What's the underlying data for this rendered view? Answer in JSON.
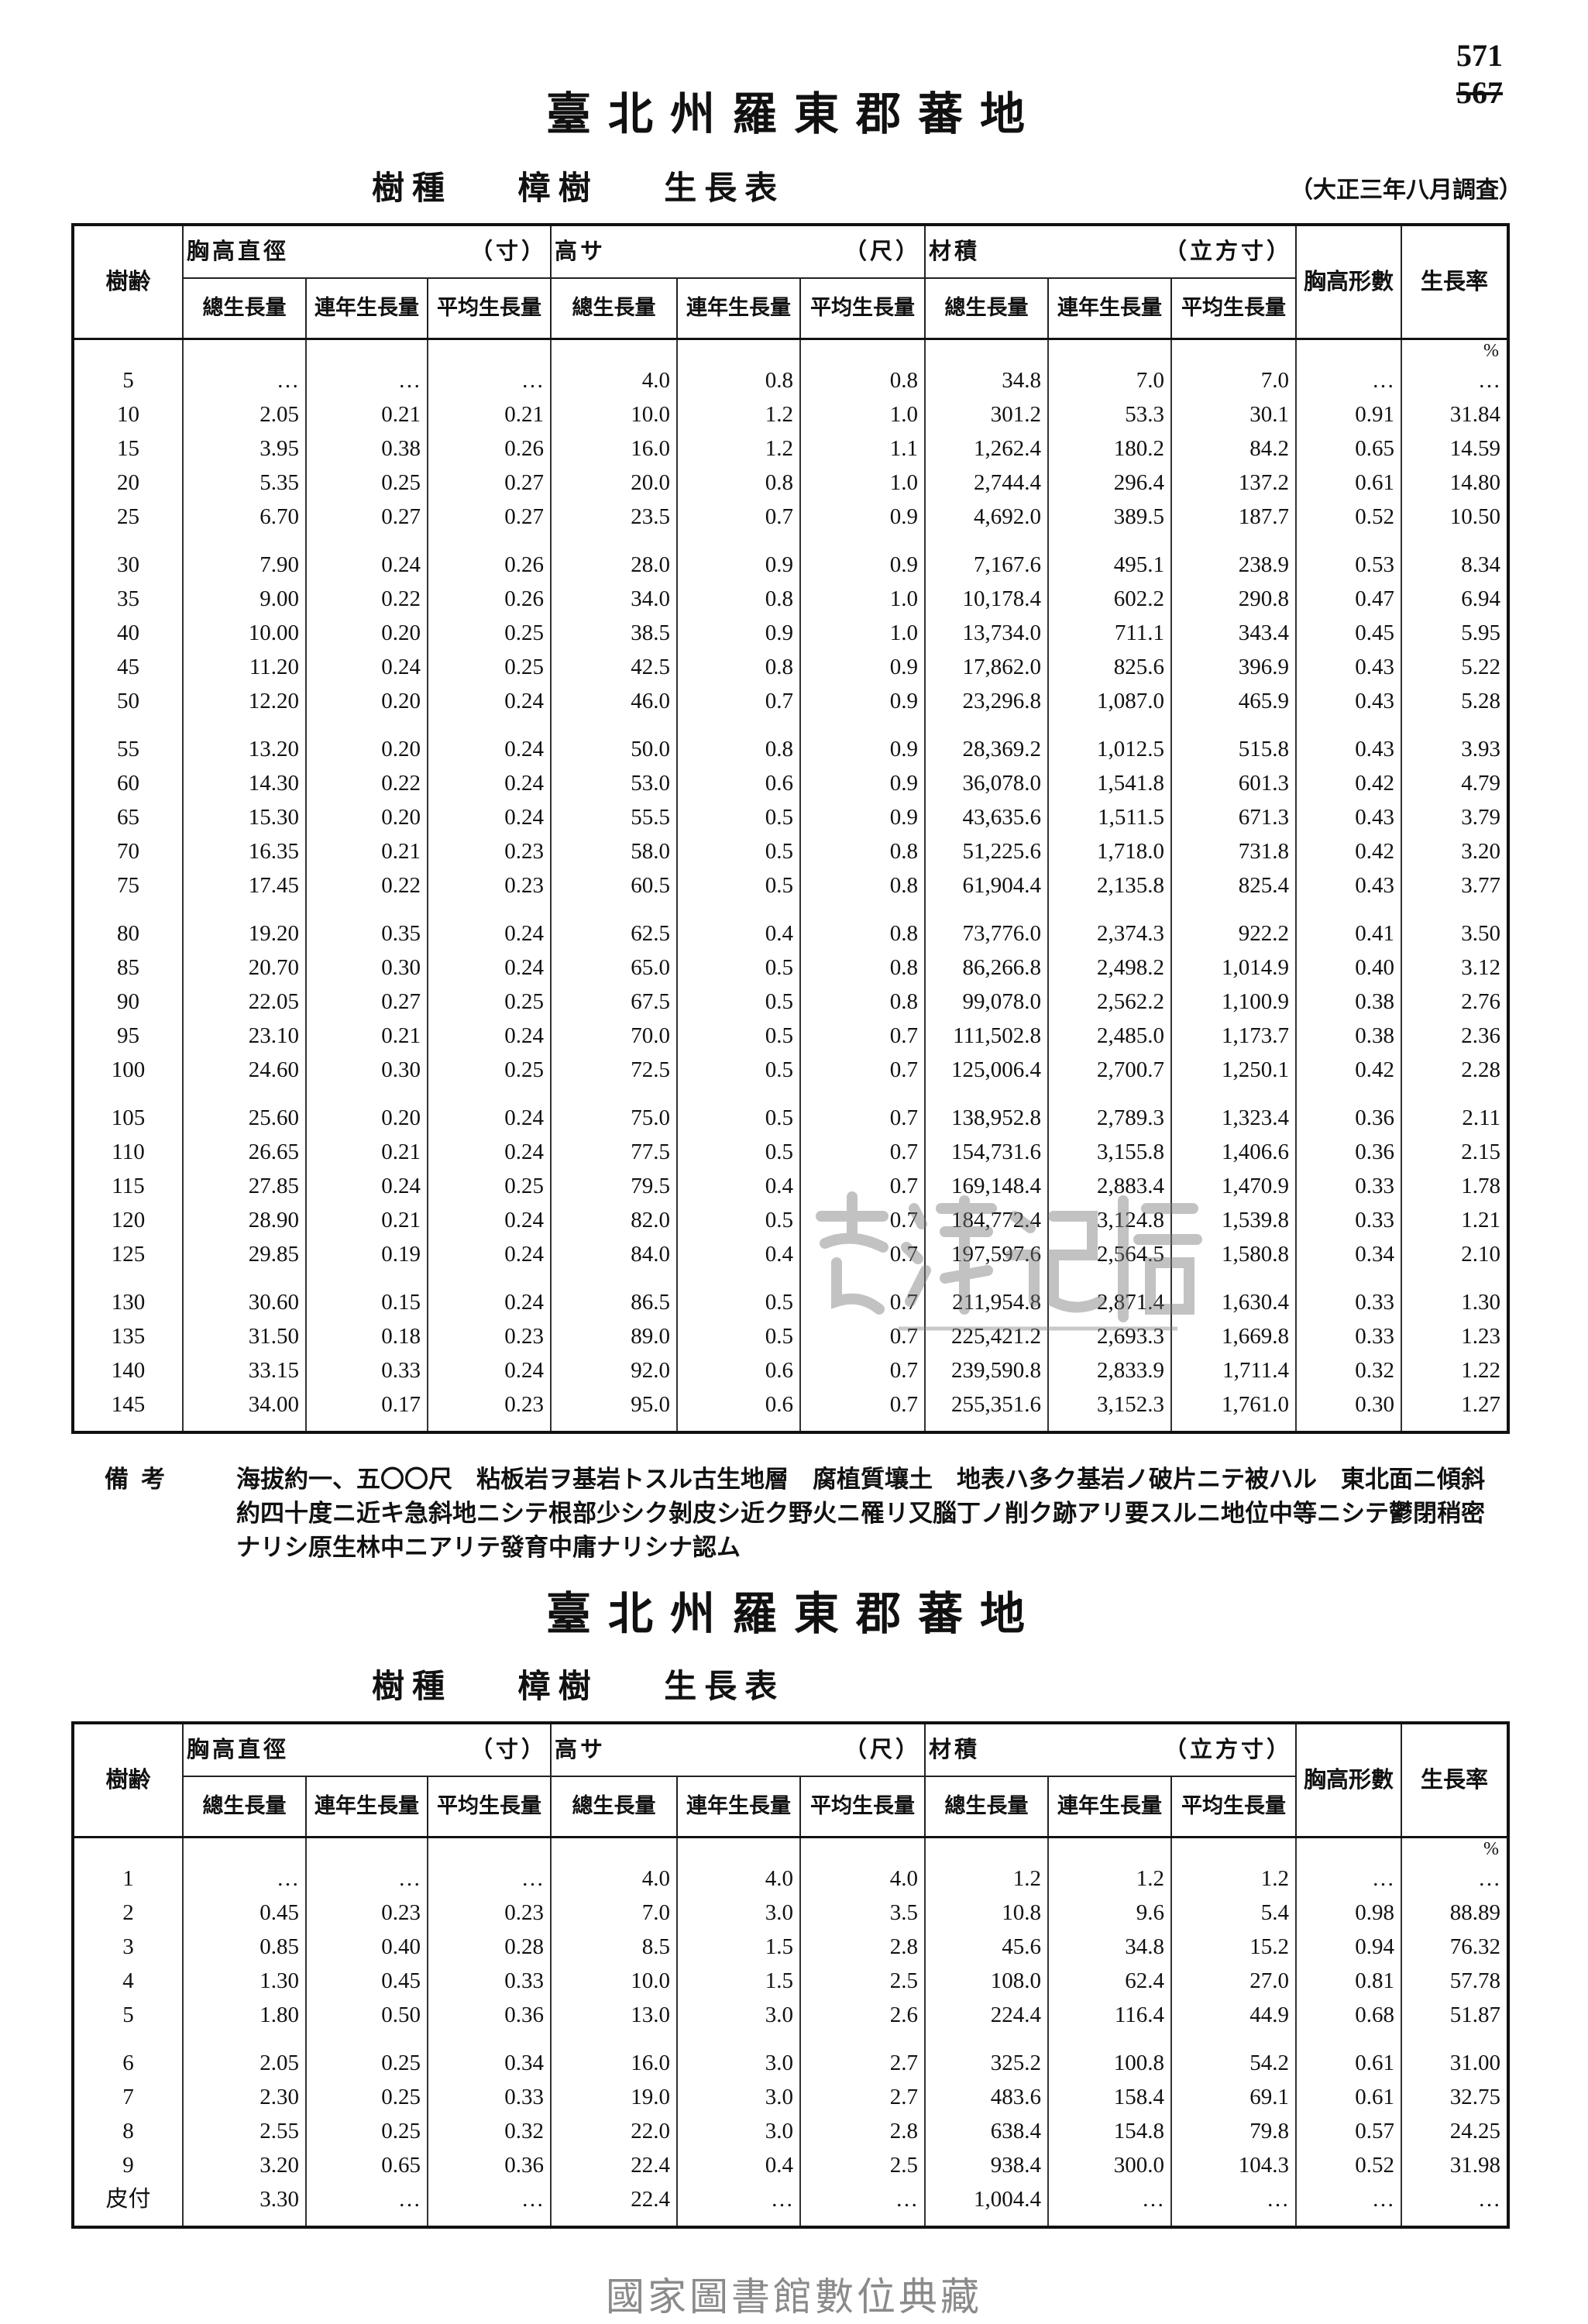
{
  "page_numbers": [
    "571",
    "567"
  ],
  "tables": [
    {
      "title": "臺北州羅東郡蕃地",
      "subtitle_species_label": "樹種",
      "subtitle_species": "樟樹",
      "subtitle_table": "生長表",
      "survey_note": "（大正三年八月調査）",
      "headers": {
        "age": "樹齢",
        "diameter": "胸高直徑",
        "diameter_unit": "（寸）",
        "height": "高サ",
        "height_unit": "（尺）",
        "volume": "材積",
        "volume_unit": "（立方寸）",
        "form_factor": "胸高形數",
        "growth_rate": "生長率",
        "total": "總生長量",
        "current_annual": "連年生長量",
        "mean_annual": "平均生長量"
      },
      "percent_mark": "%",
      "rows": [
        [
          "5",
          "…",
          "…",
          "…",
          "4.0",
          "0.8",
          "0.8",
          "34.8",
          "7.0",
          "7.0",
          "…",
          "…"
        ],
        [
          "10",
          "2.05",
          "0.21",
          "0.21",
          "10.0",
          "1.2",
          "1.0",
          "301.2",
          "53.3",
          "30.1",
          "0.91",
          "31.84"
        ],
        [
          "15",
          "3.95",
          "0.38",
          "0.26",
          "16.0",
          "1.2",
          "1.1",
          "1,262.4",
          "180.2",
          "84.2",
          "0.65",
          "14.59"
        ],
        [
          "20",
          "5.35",
          "0.25",
          "0.27",
          "20.0",
          "0.8",
          "1.0",
          "2,744.4",
          "296.4",
          "137.2",
          "0.61",
          "14.80"
        ],
        [
          "25",
          "6.70",
          "0.27",
          "0.27",
          "23.5",
          "0.7",
          "0.9",
          "4,692.0",
          "389.5",
          "187.7",
          "0.52",
          "10.50"
        ],
        [
          "30",
          "7.90",
          "0.24",
          "0.26",
          "28.0",
          "0.9",
          "0.9",
          "7,167.6",
          "495.1",
          "238.9",
          "0.53",
          "8.34"
        ],
        [
          "35",
          "9.00",
          "0.22",
          "0.26",
          "34.0",
          "0.8",
          "1.0",
          "10,178.4",
          "602.2",
          "290.8",
          "0.47",
          "6.94"
        ],
        [
          "40",
          "10.00",
          "0.20",
          "0.25",
          "38.5",
          "0.9",
          "1.0",
          "13,734.0",
          "711.1",
          "343.4",
          "0.45",
          "5.95"
        ],
        [
          "45",
          "11.20",
          "0.24",
          "0.25",
          "42.5",
          "0.8",
          "0.9",
          "17,862.0",
          "825.6",
          "396.9",
          "0.43",
          "5.22"
        ],
        [
          "50",
          "12.20",
          "0.20",
          "0.24",
          "46.0",
          "0.7",
          "0.9",
          "23,296.8",
          "1,087.0",
          "465.9",
          "0.43",
          "5.28"
        ],
        [
          "55",
          "13.20",
          "0.20",
          "0.24",
          "50.0",
          "0.8",
          "0.9",
          "28,369.2",
          "1,012.5",
          "515.8",
          "0.43",
          "3.93"
        ],
        [
          "60",
          "14.30",
          "0.22",
          "0.24",
          "53.0",
          "0.6",
          "0.9",
          "36,078.0",
          "1,541.8",
          "601.3",
          "0.42",
          "4.79"
        ],
        [
          "65",
          "15.30",
          "0.20",
          "0.24",
          "55.5",
          "0.5",
          "0.9",
          "43,635.6",
          "1,511.5",
          "671.3",
          "0.43",
          "3.79"
        ],
        [
          "70",
          "16.35",
          "0.21",
          "0.23",
          "58.0",
          "0.5",
          "0.8",
          "51,225.6",
          "1,718.0",
          "731.8",
          "0.42",
          "3.20"
        ],
        [
          "75",
          "17.45",
          "0.22",
          "0.23",
          "60.5",
          "0.5",
          "0.8",
          "61,904.4",
          "2,135.8",
          "825.4",
          "0.43",
          "3.77"
        ],
        [
          "80",
          "19.20",
          "0.35",
          "0.24",
          "62.5",
          "0.4",
          "0.8",
          "73,776.0",
          "2,374.3",
          "922.2",
          "0.41",
          "3.50"
        ],
        [
          "85",
          "20.70",
          "0.30",
          "0.24",
          "65.0",
          "0.5",
          "0.8",
          "86,266.8",
          "2,498.2",
          "1,014.9",
          "0.40",
          "3.12"
        ],
        [
          "90",
          "22.05",
          "0.27",
          "0.25",
          "67.5",
          "0.5",
          "0.8",
          "99,078.0",
          "2,562.2",
          "1,100.9",
          "0.38",
          "2.76"
        ],
        [
          "95",
          "23.10",
          "0.21",
          "0.24",
          "70.0",
          "0.5",
          "0.7",
          "111,502.8",
          "2,485.0",
          "1,173.7",
          "0.38",
          "2.36"
        ],
        [
          "100",
          "24.60",
          "0.30",
          "0.25",
          "72.5",
          "0.5",
          "0.7",
          "125,006.4",
          "2,700.7",
          "1,250.1",
          "0.42",
          "2.28"
        ],
        [
          "105",
          "25.60",
          "0.20",
          "0.24",
          "75.0",
          "0.5",
          "0.7",
          "138,952.8",
          "2,789.3",
          "1,323.4",
          "0.36",
          "2.11"
        ],
        [
          "110",
          "26.65",
          "0.21",
          "0.24",
          "77.5",
          "0.5",
          "0.7",
          "154,731.6",
          "3,155.8",
          "1,406.6",
          "0.36",
          "2.15"
        ],
        [
          "115",
          "27.85",
          "0.24",
          "0.25",
          "79.5",
          "0.4",
          "0.7",
          "169,148.4",
          "2,883.4",
          "1,470.9",
          "0.33",
          "1.78"
        ],
        [
          "120",
          "28.90",
          "0.21",
          "0.24",
          "82.0",
          "0.5",
          "0.7",
          "184,772.4",
          "3,124.8",
          "1,539.8",
          "0.33",
          "1.21"
        ],
        [
          "125",
          "29.85",
          "0.19",
          "0.24",
          "84.0",
          "0.4",
          "0.7",
          "197,597.6",
          "2,564.5",
          "1,580.8",
          "0.34",
          "2.10"
        ],
        [
          "130",
          "30.60",
          "0.15",
          "0.24",
          "86.5",
          "0.5",
          "0.7",
          "211,954.8",
          "2,871.4",
          "1,630.4",
          "0.33",
          "1.30"
        ],
        [
          "135",
          "31.50",
          "0.18",
          "0.23",
          "89.0",
          "0.5",
          "0.7",
          "225,421.2",
          "2,693.3",
          "1,669.8",
          "0.33",
          "1.23"
        ],
        [
          "140",
          "33.15",
          "0.33",
          "0.24",
          "92.0",
          "0.6",
          "0.7",
          "239,590.8",
          "2,833.9",
          "1,711.4",
          "0.32",
          "1.22"
        ],
        [
          "145",
          "34.00",
          "0.17",
          "0.23",
          "95.0",
          "0.6",
          "0.7",
          "255,351.6",
          "3,152.3",
          "1,761.0",
          "0.30",
          "1.27"
        ]
      ]
    },
    {
      "title": "臺北州羅東郡蕃地",
      "subtitle_species_label": "樹種",
      "subtitle_species": "樟樹",
      "subtitle_table": "生長表",
      "headers": {
        "age": "樹齢",
        "diameter": "胸高直徑",
        "diameter_unit": "（寸）",
        "height": "高サ",
        "height_unit": "（尺）",
        "volume": "材積",
        "volume_unit": "（立方寸）",
        "form_factor": "胸高形數",
        "growth_rate": "生長率",
        "total": "總生長量",
        "current_annual": "連年生長量",
        "mean_annual": "平均生長量"
      },
      "percent_mark": "%",
      "rows": [
        [
          "1",
          "…",
          "…",
          "…",
          "4.0",
          "4.0",
          "4.0",
          "1.2",
          "1.2",
          "1.2",
          "…",
          "…"
        ],
        [
          "2",
          "0.45",
          "0.23",
          "0.23",
          "7.0",
          "3.0",
          "3.5",
          "10.8",
          "9.6",
          "5.4",
          "0.98",
          "88.89"
        ],
        [
          "3",
          "0.85",
          "0.40",
          "0.28",
          "8.5",
          "1.5",
          "2.8",
          "45.6",
          "34.8",
          "15.2",
          "0.94",
          "76.32"
        ],
        [
          "4",
          "1.30",
          "0.45",
          "0.33",
          "10.0",
          "1.5",
          "2.5",
          "108.0",
          "62.4",
          "27.0",
          "0.81",
          "57.78"
        ],
        [
          "5",
          "1.80",
          "0.50",
          "0.36",
          "13.0",
          "3.0",
          "2.6",
          "224.4",
          "116.4",
          "44.9",
          "0.68",
          "51.87"
        ],
        [
          "6",
          "2.05",
          "0.25",
          "0.34",
          "16.0",
          "3.0",
          "2.7",
          "325.2",
          "100.8",
          "54.2",
          "0.61",
          "31.00"
        ],
        [
          "7",
          "2.30",
          "0.25",
          "0.33",
          "19.0",
          "3.0",
          "2.7",
          "483.6",
          "158.4",
          "69.1",
          "0.61",
          "32.75"
        ],
        [
          "8",
          "2.55",
          "0.25",
          "0.32",
          "22.0",
          "3.0",
          "2.8",
          "638.4",
          "154.8",
          "79.8",
          "0.57",
          "24.25"
        ],
        [
          "9",
          "3.20",
          "0.65",
          "0.36",
          "22.4",
          "0.4",
          "2.5",
          "938.4",
          "300.0",
          "104.3",
          "0.52",
          "31.98"
        ],
        [
          "皮付",
          "3.30",
          "…",
          "…",
          "22.4",
          "…",
          "…",
          "1,004.4",
          "…",
          "…",
          "…",
          "…"
        ]
      ]
    }
  ],
  "remarks": {
    "label": "備考",
    "text": "海拔約一、五〇〇尺　粘板岩ヲ基岩トスル古生地層　腐植質壤土　地表ハ多ク基岩ノ破片ニテ被ハル　東北面ニ傾斜約四十度ニ近キ急斜地ニシテ根部少シク剝皮シ近ク野火ニ罹リ又腦丁ノ削ク跡アリ要スルニ地位中等ニシテ鬱閉稍密ナリシ原生林中ニアリテ發育中庸ナリシナ認ム"
  },
  "watermark": {
    "text": "臺灣記憶",
    "text_en": "Taiwan Memory"
  },
  "footer": "國家圖書館數位典藏"
}
